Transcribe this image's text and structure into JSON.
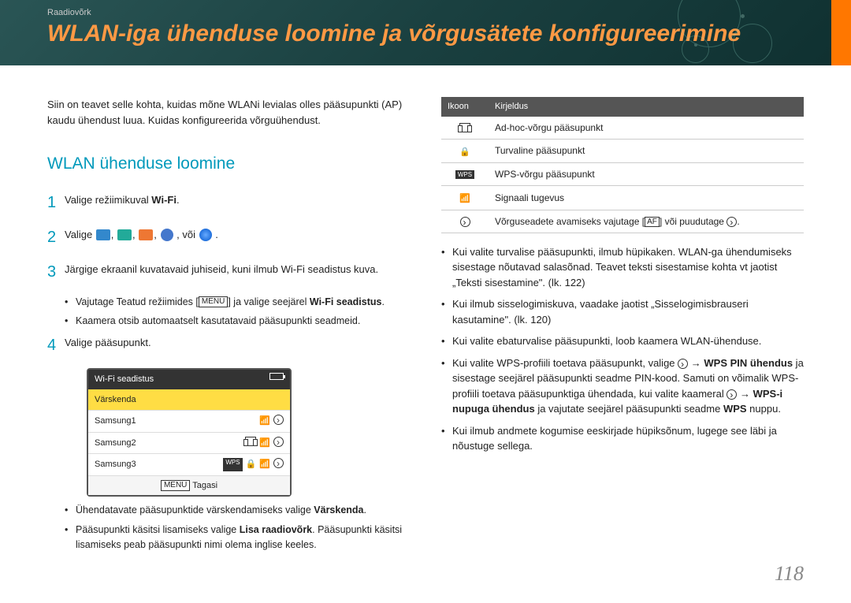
{
  "breadcrumb": "Raadiovõrk",
  "title": "WLAN-iga ühenduse loomine ja võrgusätete konfigureerimine",
  "intro": "Siin on teavet selle kohta, kuidas mõne WLANi levialas olles pääsupunkti (AP) kaudu ühendust luua. Kuidas konfigureerida võrguühendust.",
  "subheading": "WLAN ühenduse loomine",
  "steps": {
    "s1": {
      "num": "1",
      "pre": "Valige režiimikuval ",
      "bold": "Wi-Fi",
      "post": "."
    },
    "s2": {
      "num": "2",
      "pre": "Valige ",
      "post": " ."
    },
    "s2mid": ", või ",
    "s3": {
      "num": "3",
      "text": "Järgige ekraanil kuvatavaid juhiseid, kuni ilmub Wi-Fi seadistus kuva."
    },
    "s3a": {
      "pre": "Vajutage Teatud režiimides [",
      "mid": "] ja valige seejärel ",
      "bold": "Wi-Fi seadistus",
      "post": "."
    },
    "s3b": "Kaamera otsib automaatselt kasutatavaid pääsupunkti seadmeid.",
    "s4": {
      "num": "4",
      "text": "Valige pääsupunkt."
    }
  },
  "wifi_panel": {
    "title": "Wi-Fi seadistus",
    "refresh": "Värskenda",
    "rows": [
      "Samsung1",
      "Samsung2",
      "Samsung3"
    ],
    "footer_label": "Tagasi"
  },
  "after_panel": {
    "b1": {
      "pre": "Ühendatavate pääsupunktide värskendamiseks valige ",
      "bold": "Värskenda",
      "post": "."
    },
    "b2": {
      "pre": "Pääsupunkti käsitsi lisamiseks valige ",
      "bold": "Lisa raadiovõrk",
      "post": ". Pääsupunkti käsitsi lisamiseks peab pääsupunkti nimi olema inglise keeles."
    }
  },
  "icon_table": {
    "h1": "Ikoon",
    "h2": "Kirjeldus",
    "r1": "Ad-hoc-võrgu pääsupunkt",
    "r2": "Turvaline pääsupunkt",
    "r3": "WPS-võrgu pääsupunkt",
    "r4": "Signaali tugevus",
    "r5": {
      "pre": "Võrguseadete avamiseks vajutage [",
      "mid": "] või puudutage ",
      "post": "."
    }
  },
  "right_bullets": {
    "b1": "Kui valite turvalise pääsupunkti, ilmub hüpikaken. WLAN-ga ühendumiseks sisestage nõutavad salasõnad. Teavet teksti sisestamise kohta vt jaotist „Teksti sisestamine\". (lk. 122)",
    "b2": "Kui ilmub sisselogimiskuva, vaadake jaotist „Sisselogimisbrauseri kasutamine\". (lk. 120)",
    "b3": "Kui valite ebaturvalise pääsupunkti, loob kaamera WLAN-ühenduse.",
    "b4": {
      "pre": "Kui valite WPS-profiili toetava pääsupunkt, valige ",
      "bold1": "WPS PIN ühendus",
      "mid1": " ja sisestage seejärel pääsupunkti seadme PIN-kood. Samuti on võimalik WPS-profiili toetava pääsupunktiga ühendada, kui valite kaameral ",
      "bold2": "WPS-i nupuga ühendus",
      "mid2": " ja vajutate seejärel pääsupunkti seadme ",
      "bold3": "WPS",
      "post": " nuppu."
    },
    "b5": "Kui ilmub andmete kogumise eeskirjade hüpiksõnum, lugege see läbi ja nõustuge sellega."
  },
  "page_number": "118",
  "menu_label": "MENU",
  "af_label": "AF",
  "wps_label": "WPS"
}
